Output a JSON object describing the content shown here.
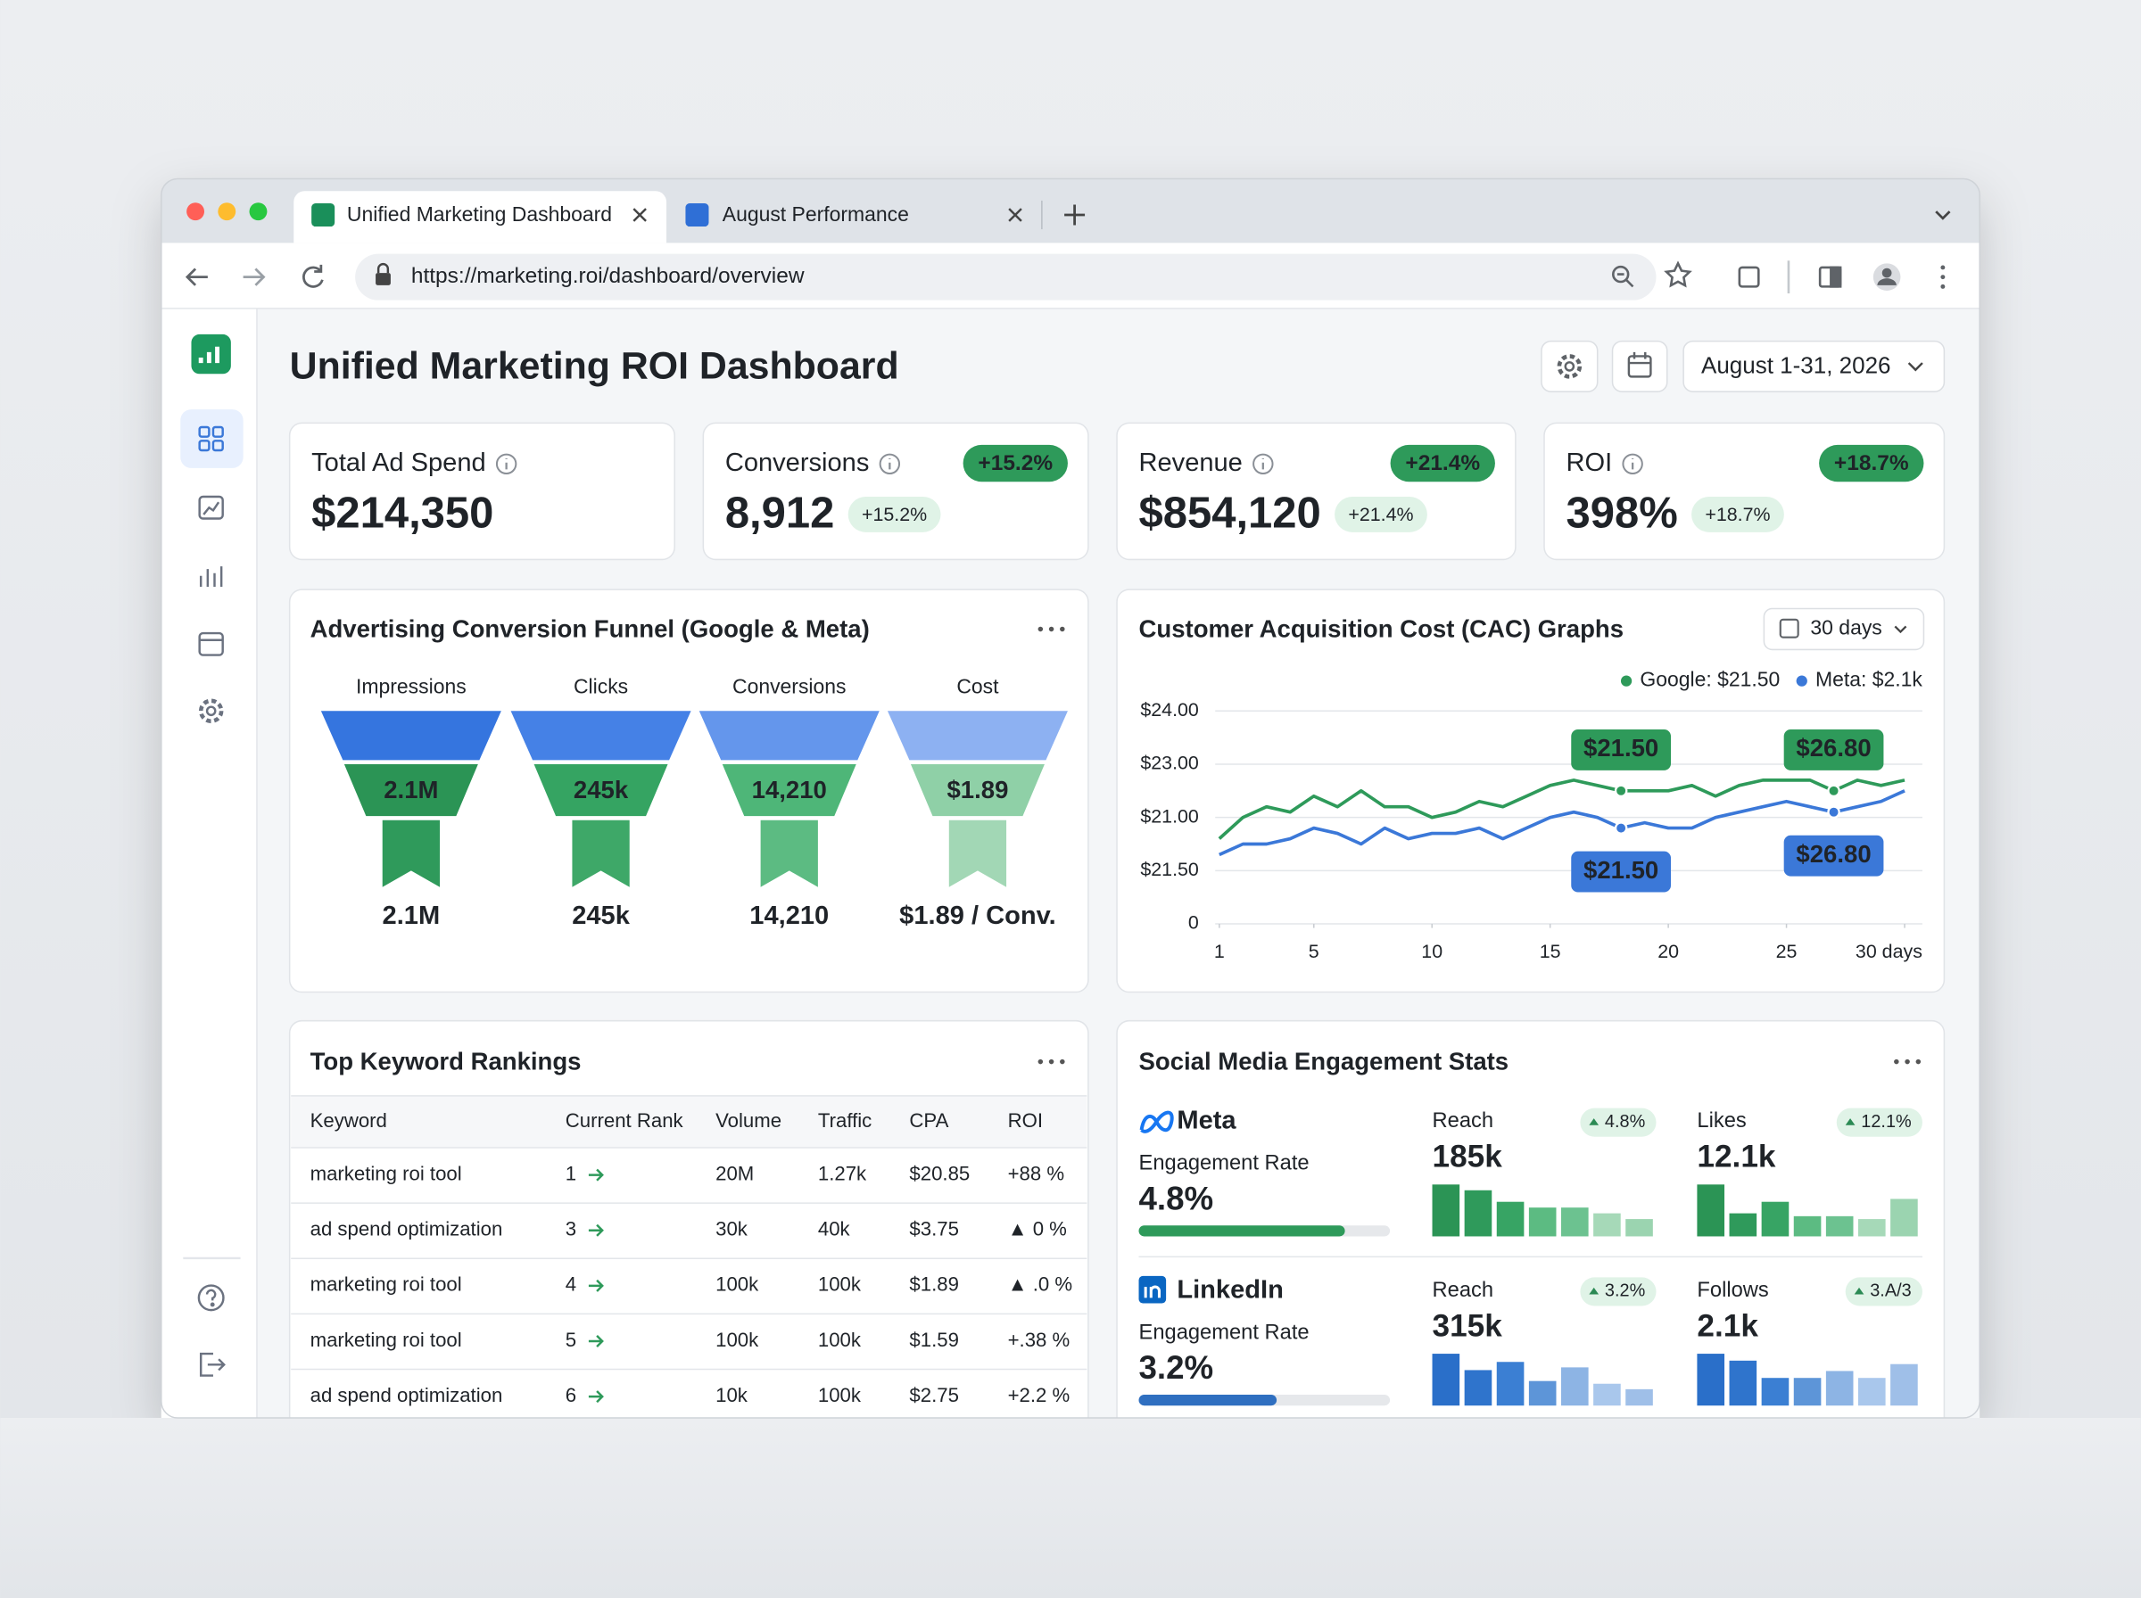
{
  "browser": {
    "tabs": [
      "Unified Marketing Dashboard",
      "August Performance"
    ],
    "url": "https://marketing.roi/dashboard/overview"
  },
  "header": {
    "title": "Unified Marketing ROI Dashboard",
    "date_range": "August 1-31, 2026"
  },
  "kpis": [
    {
      "label": "Total Ad Spend",
      "value": "$214,350"
    },
    {
      "label": "Conversions",
      "value": "8,912",
      "badge": "+15.2%",
      "change": "+15.2%"
    },
    {
      "label": "Revenue",
      "value": "$854,120",
      "badge": "+21.4%",
      "change": "+21.4%"
    },
    {
      "label": "ROI",
      "value": "398%",
      "badge": "+18.7%",
      "change": "+18.7%"
    }
  ],
  "funnel": {
    "title": "Advertising Conversion Funnel (Google & Meta)",
    "stages": [
      {
        "label": "Impressions",
        "inner": "2.1M",
        "value": "2.1M"
      },
      {
        "label": "Clicks",
        "inner": "245k",
        "value": "245k"
      },
      {
        "label": "Conversions",
        "inner": "14,210",
        "value": "14,210"
      },
      {
        "label": "Cost",
        "inner": "$1.89",
        "value": "$1.89 / Conv."
      }
    ]
  },
  "chart_data": {
    "type": "line",
    "title": "Customer Acquisition Cost (CAC) Graphs",
    "range": "30 days",
    "x": [
      1,
      2,
      3,
      4,
      5,
      6,
      7,
      8,
      9,
      10,
      11,
      12,
      13,
      14,
      15,
      16,
      17,
      18,
      19,
      20,
      21,
      22,
      23,
      24,
      25,
      26,
      27,
      28,
      29,
      30
    ],
    "xlim": [
      1,
      30
    ],
    "xticks": [
      1,
      5,
      10,
      15,
      20,
      25,
      {
        "value": 30,
        "label": "30 days"
      }
    ],
    "ylim": [
      0,
      4
    ],
    "yticks": [
      0,
      {
        "value": 1,
        "label": "$21.50"
      },
      {
        "value": 2,
        "label": "$21.00"
      },
      {
        "value": 3,
        "label": "$23.00"
      },
      {
        "value": 4,
        "label": "$24.00"
      }
    ],
    "grid": true,
    "series": [
      {
        "name": "Google: $21.50",
        "color": "#2e9a5a",
        "values": [
          1.6,
          2.0,
          2.2,
          2.1,
          2.4,
          2.2,
          2.5,
          2.2,
          2.2,
          2.0,
          2.1,
          2.3,
          2.2,
          2.4,
          2.6,
          2.7,
          2.6,
          2.5,
          2.5,
          2.5,
          2.6,
          2.4,
          2.6,
          2.7,
          2.7,
          2.7,
          2.5,
          2.7,
          2.6,
          2.7
        ]
      },
      {
        "name": "Meta: $2.1k",
        "color": "#3b78d8",
        "values": [
          1.3,
          1.5,
          1.5,
          1.6,
          1.8,
          1.7,
          1.5,
          1.8,
          1.6,
          1.7,
          1.7,
          1.8,
          1.6,
          1.8,
          2.0,
          2.1,
          2.0,
          1.8,
          1.9,
          1.8,
          1.8,
          2.0,
          2.1,
          2.2,
          2.3,
          2.2,
          2.1,
          2.2,
          2.3,
          2.5
        ]
      }
    ],
    "annotations": [
      {
        "series": 0,
        "x": 18,
        "label": "$21.50"
      },
      {
        "series": 0,
        "x": 27,
        "label": "$26.80"
      },
      {
        "series": 1,
        "x": 18,
        "label": "$21.50"
      },
      {
        "series": 1,
        "x": 27,
        "label": "$26.80"
      }
    ]
  },
  "keywords": {
    "title": "Top Keyword Rankings",
    "columns": [
      "Keyword",
      "Current Rank",
      "Volume",
      "Traffic",
      "CPA",
      "ROI"
    ],
    "rows": [
      [
        "marketing roi tool",
        "1",
        "20M",
        "1.27k",
        "$20.85",
        "+88 %"
      ],
      [
        "ad spend optimization",
        "3",
        "30k",
        "40k",
        "$3.75",
        "▲ 0 %"
      ],
      [
        "marketing roi tool",
        "4",
        "100k",
        "100k",
        "$1.89",
        "▲ .0 %"
      ],
      [
        "marketing roi tool",
        "5",
        "100k",
        "100k",
        "$1.59",
        "+.38 %"
      ],
      [
        "ad spend optimization",
        "6",
        "10k",
        "100k",
        "$2.75",
        "+2.2 %"
      ]
    ]
  },
  "social": {
    "title": "Social Media Engagement Stats",
    "platforms": [
      {
        "name": "Meta",
        "engagement_label": "Engagement Rate",
        "engagement": "4.8%",
        "metrics": [
          {
            "label": "Reach",
            "value": "185k",
            "change": "4.8%",
            "bars": [
              36,
              32,
              24,
              20,
              20,
              16,
              12
            ]
          },
          {
            "label": "Likes",
            "value": "12.1k",
            "change": "12.1%",
            "bars": [
              36,
              16,
              24,
              14,
              14,
              12,
              26
            ]
          }
        ]
      },
      {
        "name": "LinkedIn",
        "engagement_label": "Engagement Rate",
        "engagement": "3.2%",
        "metrics": [
          {
            "label": "Reach",
            "value": "315k",
            "change": "3.2%",
            "bars": [
              38,
              26,
              32,
              18,
              28,
              16,
              12
            ]
          },
          {
            "label": "Follows",
            "value": "2.1k",
            "change": "3.A/3",
            "bars": [
              30,
              26,
              16,
              16,
              20,
              16,
              24
            ]
          }
        ]
      }
    ]
  }
}
